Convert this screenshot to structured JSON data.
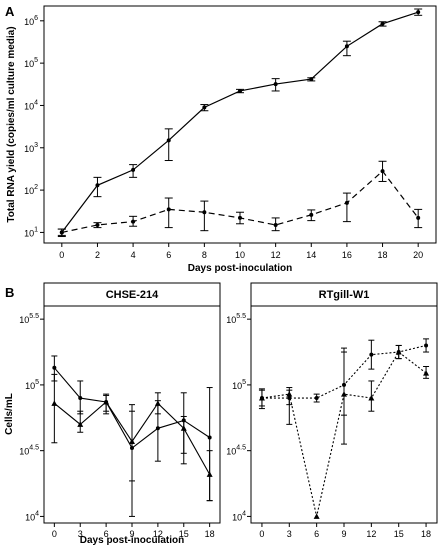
{
  "chart_data": [
    {
      "panel": "A",
      "type": "line",
      "xlabel": "Days post-inoculation",
      "ylabel": "Total RNA yield (copies/ml culture media)",
      "x_ticks": [
        "0",
        "2",
        "4",
        "6",
        "8",
        "10",
        "12",
        "14",
        "16",
        "18",
        "20"
      ],
      "y_ticks": [
        {
          "base": "10",
          "exp": "1"
        },
        {
          "base": "10",
          "exp": "2"
        },
        {
          "base": "10",
          "exp": "3"
        },
        {
          "base": "10",
          "exp": "4"
        },
        {
          "base": "10",
          "exp": "5"
        },
        {
          "base": "10",
          "exp": "6"
        }
      ],
      "xlim": [
        -1,
        21
      ],
      "ylim_log10": [
        0.75,
        6.35
      ],
      "yscale": "log",
      "grid": false,
      "series": [
        {
          "style": "solid",
          "x": [
            0,
            2,
            4,
            6,
            8,
            10,
            12,
            14,
            16,
            18,
            20
          ],
          "y": [
            10,
            130,
            300,
            1500,
            9000,
            22000,
            32000,
            42000,
            250000,
            850000,
            1600000
          ],
          "err_low": [
            8,
            70,
            200,
            500,
            7500,
            20000,
            22000,
            38000,
            150000,
            750000,
            1350000
          ],
          "err_high": [
            12,
            200,
            400,
            2800,
            10500,
            24000,
            43000,
            45000,
            330000,
            950000,
            1900000
          ]
        },
        {
          "style": "dashed",
          "x": [
            0,
            2,
            4,
            6,
            8,
            10,
            12,
            14,
            16,
            18,
            20
          ],
          "y": [
            10,
            15,
            18,
            35,
            30,
            22,
            15,
            26,
            50,
            280,
            22
          ],
          "err_low": [
            8.5,
            13,
            14,
            13,
            11,
            16,
            11,
            19,
            18,
            160,
            13
          ],
          "err_high": [
            12,
            17,
            24,
            65,
            55,
            30,
            22,
            34,
            85,
            480,
            35
          ]
        }
      ]
    },
    {
      "panel": "B",
      "type": "line",
      "facet": "CHSE-214",
      "xlabel": "Days post-inoculation",
      "ylabel": "Cells/mL",
      "x_ticks": [
        "0",
        "3",
        "6",
        "9",
        "12",
        "15",
        "18"
      ],
      "y_ticks": [
        {
          "base": "10",
          "exp": "4"
        },
        {
          "base": "10",
          "exp": "4.5"
        },
        {
          "base": "10",
          "exp": "5"
        },
        {
          "base": "10",
          "exp": "5.5"
        }
      ],
      "xlim": [
        -1.2,
        19.2
      ],
      "ylim_log10": [
        3.95,
        5.6
      ],
      "yscale": "log",
      "grid": false,
      "series": [
        {
          "style": "solid",
          "marker": "circle",
          "x": [
            0,
            3,
            6,
            9,
            12,
            15,
            18
          ],
          "y_log10": [
            5.13,
            4.9,
            4.87,
            4.52,
            4.67,
            4.73,
            4.6
          ],
          "err_low": [
            5.03,
            4.78,
            4.8,
            4.27,
            4.42,
            4.4,
            4.12
          ],
          "err_high": [
            5.22,
            5.03,
            4.93,
            4.8,
            4.88,
            4.94,
            4.98
          ]
        },
        {
          "style": "solid",
          "marker": "triangle",
          "x": [
            0,
            3,
            6,
            9,
            12,
            15,
            18
          ],
          "y_log10": [
            4.86,
            4.7,
            4.87,
            4.57,
            4.86,
            4.67,
            4.32
          ],
          "err_low": [
            4.56,
            4.64,
            4.78,
            4.0,
            4.78,
            4.48,
            4.12
          ],
          "err_high": [
            5.08,
            4.8,
            4.92,
            4.85,
            4.94,
            4.76,
            4.5
          ]
        }
      ]
    },
    {
      "panel": "B",
      "type": "line",
      "facet": "RTgill-W1",
      "xlabel": "",
      "ylabel": "",
      "x_ticks": [
        "0",
        "3",
        "6",
        "9",
        "12",
        "15",
        "18"
      ],
      "y_ticks": [
        {
          "base": "10",
          "exp": "4"
        },
        {
          "base": "10",
          "exp": "4.5"
        },
        {
          "base": "10",
          "exp": "5"
        },
        {
          "base": "10",
          "exp": "5.5"
        }
      ],
      "xlim": [
        -1.2,
        19.2
      ],
      "ylim_log10": [
        3.95,
        5.6
      ],
      "yscale": "log",
      "grid": false,
      "series": [
        {
          "style": "dotted",
          "marker": "circle",
          "x": [
            0,
            3,
            6,
            9,
            12,
            15,
            18
          ],
          "y_log10": [
            4.9,
            4.9,
            4.9,
            5.0,
            5.23,
            5.25,
            5.3
          ],
          "err_low": [
            4.84,
            4.85,
            4.87,
            4.77,
            5.12,
            5.2,
            5.25
          ],
          "err_high": [
            4.96,
            4.98,
            4.93,
            5.28,
            5.34,
            5.3,
            5.35
          ]
        },
        {
          "style": "dotted",
          "marker": "triangle",
          "x": [
            0,
            3,
            6,
            9,
            12,
            15,
            18
          ],
          "y_log10": [
            4.9,
            4.93,
            4.0,
            4.93,
            4.9,
            5.25,
            5.09
          ],
          "err_low": [
            4.82,
            4.7,
            4.0,
            4.55,
            4.8,
            5.2,
            5.05
          ],
          "err_high": [
            4.97,
            4.96,
            4.0,
            5.25,
            5.03,
            5.3,
            5.14
          ]
        }
      ]
    }
  ]
}
